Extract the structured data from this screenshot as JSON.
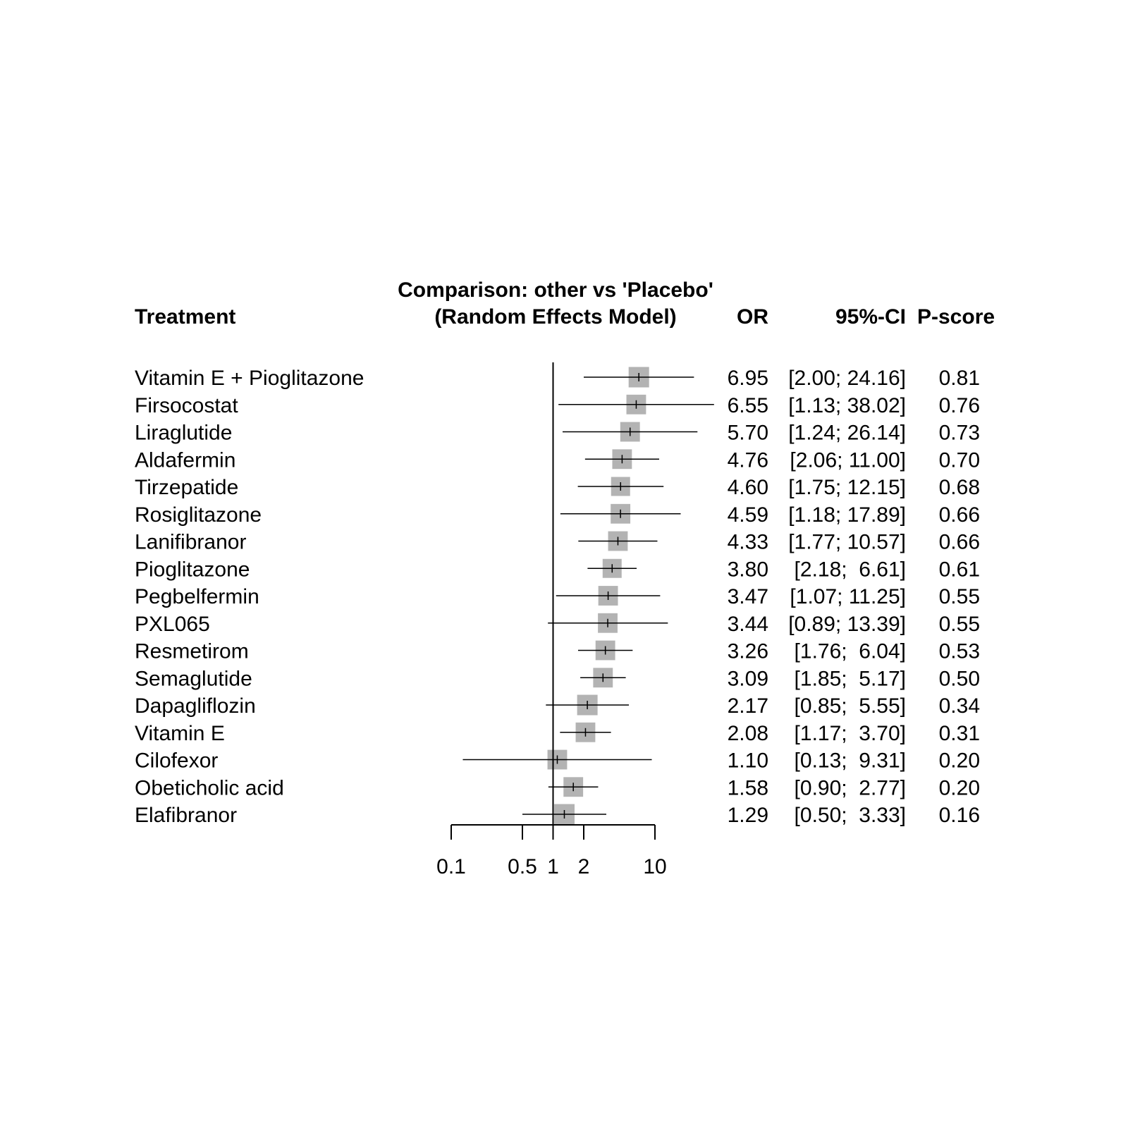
{
  "header": {
    "treatment": "Treatment",
    "comparison_line1": "Comparison: other vs 'Placebo'",
    "comparison_line2": "(Random Effects Model)",
    "or": "OR",
    "ci": "95%-CI",
    "pscore": "P-score"
  },
  "chart_data": {
    "type": "forest",
    "scale": "log",
    "reference_value": 1,
    "xlim": [
      0.1,
      10
    ],
    "xticks": [
      0.1,
      0.5,
      1,
      2,
      10
    ],
    "xtick_labels": [
      "0.1",
      "0.5",
      "1",
      "2",
      "10"
    ],
    "colors": {
      "box": "#b3b3b3",
      "line": "#000000"
    },
    "rows": [
      {
        "treatment": "Vitamin E + Pioglitazone",
        "or": 6.95,
        "lower": 2.0,
        "upper": 24.16,
        "or_text": "6.95",
        "ci_text": "[2.00; 24.16]",
        "pscore": "0.81",
        "weight": 1.0
      },
      {
        "treatment": "Firsocostat",
        "or": 6.55,
        "lower": 1.13,
        "upper": 38.02,
        "or_text": "6.55",
        "ci_text": "[1.13; 38.02]",
        "pscore": "0.76",
        "weight": 0.96
      },
      {
        "treatment": "Liraglutide",
        "or": 5.7,
        "lower": 1.24,
        "upper": 26.14,
        "or_text": "5.70",
        "ci_text": "[1.24; 26.14]",
        "pscore": "0.73",
        "weight": 0.96
      },
      {
        "treatment": "Aldafermin",
        "or": 4.76,
        "lower": 2.06,
        "upper": 11.0,
        "or_text": "4.76",
        "ci_text": "[2.06; 11.00]",
        "pscore": "0.70",
        "weight": 0.96
      },
      {
        "treatment": "Tirzepatide",
        "or": 4.6,
        "lower": 1.75,
        "upper": 12.15,
        "or_text": "4.60",
        "ci_text": "[1.75; 12.15]",
        "pscore": "0.68",
        "weight": 0.93
      },
      {
        "treatment": "Rosiglitazone",
        "or": 4.59,
        "lower": 1.18,
        "upper": 17.89,
        "or_text": "4.59",
        "ci_text": "[1.18; 17.89]",
        "pscore": "0.66",
        "weight": 0.96
      },
      {
        "treatment": "Lanifibranor",
        "or": 4.33,
        "lower": 1.77,
        "upper": 10.57,
        "or_text": "4.33",
        "ci_text": "[1.77; 10.57]",
        "pscore": "0.66",
        "weight": 0.96
      },
      {
        "treatment": "Pioglitazone",
        "or": 3.8,
        "lower": 2.18,
        "upper": 6.61,
        "or_text": "3.80",
        "ci_text": "[2.18;  6.61]",
        "pscore": "0.61",
        "weight": 0.93
      },
      {
        "treatment": "Pegbelfermin",
        "or": 3.47,
        "lower": 1.07,
        "upper": 11.25,
        "or_text": "3.47",
        "ci_text": "[1.07; 11.25]",
        "pscore": "0.55",
        "weight": 0.96
      },
      {
        "treatment": "PXL065",
        "or": 3.44,
        "lower": 0.89,
        "upper": 13.39,
        "or_text": "3.44",
        "ci_text": "[0.89; 13.39]",
        "pscore": "0.55",
        "weight": 0.96
      },
      {
        "treatment": "Resmetirom",
        "or": 3.26,
        "lower": 1.76,
        "upper": 6.04,
        "or_text": "3.26",
        "ci_text": "[1.76;  6.04]",
        "pscore": "0.53",
        "weight": 0.96
      },
      {
        "treatment": "Semaglutide",
        "or": 3.09,
        "lower": 1.85,
        "upper": 5.17,
        "or_text": "3.09",
        "ci_text": "[1.85;  5.17]",
        "pscore": "0.50",
        "weight": 0.96
      },
      {
        "treatment": "Dapagliflozin",
        "or": 2.17,
        "lower": 0.85,
        "upper": 5.55,
        "or_text": "2.17",
        "ci_text": "[0.85;  5.55]",
        "pscore": "0.34",
        "weight": 1.0
      },
      {
        "treatment": "Vitamin E",
        "or": 2.08,
        "lower": 1.17,
        "upper": 3.7,
        "or_text": "2.08",
        "ci_text": "[1.17;  3.70]",
        "pscore": "0.31",
        "weight": 0.96
      },
      {
        "treatment": "Cilofexor",
        "or": 1.1,
        "lower": 0.13,
        "upper": 9.31,
        "or_text": "1.10",
        "ci_text": "[0.13;  9.31]",
        "pscore": "0.20",
        "weight": 0.96
      },
      {
        "treatment": "Obeticholic acid",
        "or": 1.58,
        "lower": 0.9,
        "upper": 2.77,
        "or_text": "1.58",
        "ci_text": "[0.90;  2.77]",
        "pscore": "0.20",
        "weight": 0.96
      },
      {
        "treatment": "Elafibranor",
        "or": 1.29,
        "lower": 0.5,
        "upper": 3.33,
        "or_text": "1.29",
        "ci_text": "[0.50;  3.33]",
        "pscore": "0.16",
        "weight": 1.0
      }
    ]
  }
}
